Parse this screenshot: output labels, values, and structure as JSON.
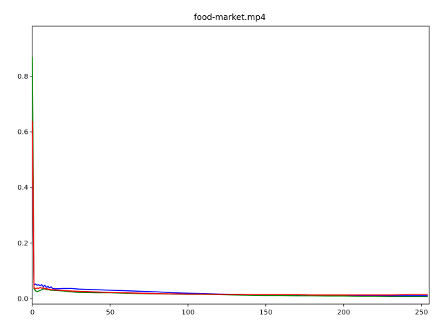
{
  "chart_data": {
    "type": "line",
    "title": "food-market.mp4",
    "xlabel": "",
    "ylabel": "",
    "xlim": [
      0,
      255
    ],
    "ylim": [
      -0.02,
      0.98
    ],
    "xticks": [
      0,
      50,
      100,
      150,
      200,
      250
    ],
    "yticks": [
      0.0,
      0.2,
      0.4,
      0.6,
      0.8
    ],
    "xtick_labels": [
      "0",
      "50",
      "100",
      "150",
      "200",
      "250"
    ],
    "ytick_labels": [
      "0.0",
      "0.2",
      "0.4",
      "0.6",
      "0.8"
    ],
    "grid": false,
    "legend": "none",
    "series": [
      {
        "color": "#0000ff",
        "x": [
          0,
          1,
          2,
          3,
          4,
          5,
          6,
          7,
          8,
          9,
          10,
          11,
          12,
          13,
          15,
          20,
          25,
          30,
          40,
          50,
          60,
          70,
          80,
          90,
          100,
          110,
          120,
          130,
          140,
          150,
          160,
          170,
          180,
          190,
          200,
          210,
          220,
          230,
          240,
          250,
          254
        ],
        "y": [
          0.62,
          0.05,
          0.052,
          0.048,
          0.05,
          0.046,
          0.05,
          0.042,
          0.048,
          0.04,
          0.044,
          0.038,
          0.042,
          0.036,
          0.035,
          0.036,
          0.036,
          0.034,
          0.032,
          0.03,
          0.028,
          0.026,
          0.024,
          0.021,
          0.019,
          0.018,
          0.016,
          0.015,
          0.014,
          0.013,
          0.012,
          0.012,
          0.011,
          0.011,
          0.01,
          0.01,
          0.01,
          0.01,
          0.01,
          0.01,
          0.01
        ]
      },
      {
        "color": "#008000",
        "x": [
          0,
          1,
          2,
          3,
          4,
          5,
          6,
          7,
          8,
          9,
          10,
          12,
          15,
          20,
          25,
          30,
          40,
          50,
          60,
          70,
          80,
          90,
          100,
          110,
          120,
          130,
          140,
          150,
          160,
          170,
          180,
          190,
          200,
          210,
          220,
          230,
          240,
          250,
          254
        ],
        "y": [
          0.87,
          0.035,
          0.028,
          0.025,
          0.027,
          0.029,
          0.032,
          0.035,
          0.034,
          0.033,
          0.032,
          0.03,
          0.029,
          0.027,
          0.024,
          0.022,
          0.021,
          0.021,
          0.019,
          0.018,
          0.017,
          0.016,
          0.015,
          0.015,
          0.014,
          0.013,
          0.012,
          0.011,
          0.011,
          0.01,
          0.01,
          0.009,
          0.009,
          0.008,
          0.008,
          0.007,
          0.007,
          0.007,
          0.007
        ]
      },
      {
        "color": "#ff0000",
        "x": [
          0,
          1,
          2,
          3,
          4,
          5,
          6,
          7,
          8,
          9,
          10,
          12,
          15,
          20,
          25,
          30,
          40,
          50,
          60,
          70,
          80,
          90,
          100,
          110,
          120,
          130,
          140,
          150,
          160,
          170,
          180,
          190,
          200,
          210,
          220,
          230,
          240,
          250,
          254
        ],
        "y": [
          0.64,
          0.04,
          0.035,
          0.038,
          0.036,
          0.04,
          0.037,
          0.039,
          0.035,
          0.036,
          0.034,
          0.032,
          0.031,
          0.029,
          0.027,
          0.026,
          0.024,
          0.022,
          0.021,
          0.019,
          0.018,
          0.017,
          0.016,
          0.016,
          0.015,
          0.015,
          0.014,
          0.014,
          0.014,
          0.014,
          0.013,
          0.013,
          0.013,
          0.013,
          0.013,
          0.013,
          0.014,
          0.015,
          0.015
        ]
      }
    ]
  }
}
